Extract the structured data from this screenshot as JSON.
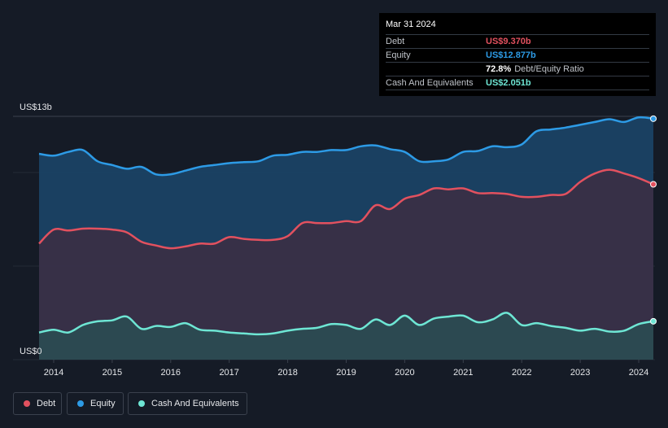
{
  "tooltip": {
    "date": "Mar 31 2024",
    "rows": [
      {
        "label": "Debt",
        "value": "US$9.370b",
        "color": "#e2515f"
      },
      {
        "label": "Equity",
        "value": "US$12.877b",
        "color": "#2d9be6"
      },
      {
        "label": "",
        "value": "72.8%",
        "extra": "Debt/Equity Ratio"
      },
      {
        "label": "Cash And Equivalents",
        "value": "US$2.051b",
        "color": "#6ee6d4"
      }
    ]
  },
  "legend": [
    {
      "label": "Debt",
      "color": "#e2515f"
    },
    {
      "label": "Equity",
      "color": "#2d9be6"
    },
    {
      "label": "Cash And Equivalents",
      "color": "#6ee6d4"
    }
  ],
  "chart_data": {
    "type": "area",
    "title": "",
    "y_top_label": "US$13b",
    "y_bottom_label": "US$0",
    "ylim": [
      0,
      13
    ],
    "xlim": [
      2013.75,
      2024.25
    ],
    "x_ticks": [
      "2014",
      "2015",
      "2016",
      "2017",
      "2018",
      "2019",
      "2020",
      "2021",
      "2022",
      "2023",
      "2024"
    ],
    "x": [
      2013.75,
      2014.0,
      2014.25,
      2014.5,
      2014.75,
      2015.0,
      2015.25,
      2015.5,
      2015.75,
      2016.0,
      2016.25,
      2016.5,
      2016.75,
      2017.0,
      2017.25,
      2017.5,
      2017.75,
      2018.0,
      2018.25,
      2018.5,
      2018.75,
      2019.0,
      2019.25,
      2019.5,
      2019.75,
      2020.0,
      2020.25,
      2020.5,
      2020.75,
      2021.0,
      2021.25,
      2021.5,
      2021.75,
      2022.0,
      2022.25,
      2022.5,
      2022.75,
      2023.0,
      2023.25,
      2023.5,
      2023.75,
      2024.0,
      2024.25
    ],
    "series": [
      {
        "name": "Equity",
        "color": "#2d9be6",
        "values": [
          11.0,
          10.9,
          11.1,
          11.2,
          10.6,
          10.4,
          10.2,
          10.3,
          9.9,
          9.9,
          10.1,
          10.3,
          10.4,
          10.5,
          10.55,
          10.6,
          10.9,
          10.95,
          11.1,
          11.1,
          11.2,
          11.2,
          11.4,
          11.45,
          11.25,
          11.1,
          10.6,
          10.6,
          10.7,
          11.1,
          11.15,
          11.4,
          11.35,
          11.5,
          12.2,
          12.3,
          12.4,
          12.55,
          12.7,
          12.85,
          12.7,
          12.95,
          12.877
        ]
      },
      {
        "name": "Debt",
        "color": "#e2515f",
        "values": [
          6.2,
          6.95,
          6.9,
          7.0,
          7.0,
          6.95,
          6.8,
          6.3,
          6.1,
          5.95,
          6.05,
          6.2,
          6.2,
          6.55,
          6.45,
          6.4,
          6.4,
          6.6,
          7.3,
          7.3,
          7.3,
          7.4,
          7.4,
          8.25,
          8.05,
          8.6,
          8.8,
          9.15,
          9.1,
          9.15,
          8.9,
          8.9,
          8.85,
          8.7,
          8.7,
          8.8,
          8.85,
          9.5,
          9.95,
          10.15,
          9.95,
          9.7,
          9.37
        ]
      },
      {
        "name": "Cash And Equivalents",
        "color": "#6ee6d4",
        "values": [
          1.45,
          1.6,
          1.45,
          1.85,
          2.05,
          2.1,
          2.3,
          1.65,
          1.8,
          1.75,
          1.95,
          1.6,
          1.55,
          1.45,
          1.4,
          1.35,
          1.4,
          1.55,
          1.65,
          1.7,
          1.9,
          1.85,
          1.65,
          2.15,
          1.85,
          2.35,
          1.85,
          2.2,
          2.3,
          2.35,
          2.0,
          2.15,
          2.5,
          1.85,
          1.95,
          1.8,
          1.7,
          1.55,
          1.65,
          1.5,
          1.55,
          1.9,
          2.051
        ]
      }
    ]
  }
}
